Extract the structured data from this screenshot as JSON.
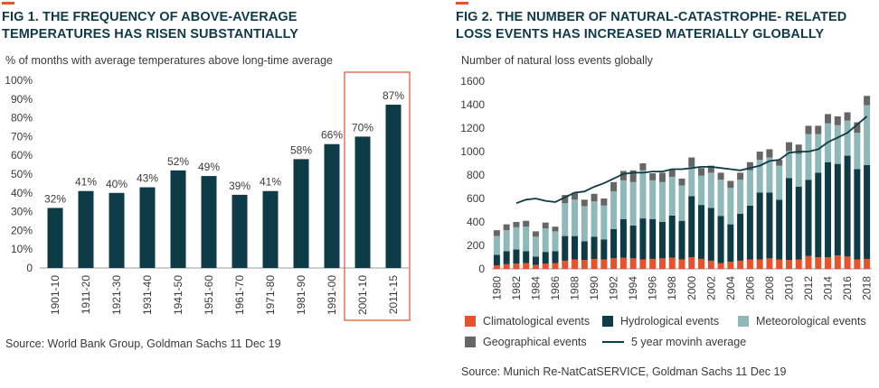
{
  "colors": {
    "teal_dark": "#0d3b47",
    "teal_light": "#8fb8b8",
    "orange": "#e8522a",
    "gray": "#666666",
    "axis": "#9a9a9a",
    "highlight_box": "#d9532c"
  },
  "chart_data": [
    {
      "type": "bar",
      "title": "FIG 1. THE FREQUENCY OF ABOVE-AVERAGE TEMPERATURES HAS RISEN SUBSTANTIALLY",
      "subtitle": "% of months with average temperatures above long-time average",
      "source": "Source: World Bank Group, Goldman Sachs 11 Dec 19",
      "categories": [
        "1901-10",
        "1911-20",
        "1921-30",
        "1931-40",
        "1941-50",
        "1951-60",
        "1961-70",
        "1971-80",
        "1981-90",
        "1991-00",
        "2001-10",
        "2011-15"
      ],
      "values": [
        32,
        41,
        40,
        43,
        52,
        49,
        39,
        41,
        58,
        66,
        70,
        87
      ],
      "data_labels": [
        "32%",
        "41%",
        "40%",
        "43%",
        "52%",
        "49%",
        "39%",
        "41%",
        "58%",
        "66%",
        "70%",
        "87%"
      ],
      "ylim": [
        0,
        100
      ],
      "yticks": [
        0,
        10,
        20,
        30,
        40,
        50,
        60,
        70,
        80,
        90,
        100
      ],
      "ytick_labels": [
        "0",
        "10%",
        "20%",
        "30%",
        "40%",
        "50%",
        "60%",
        "70%",
        "80%",
        "90%",
        "100%"
      ],
      "highlighted_categories": [
        "2001-10",
        "2011-15"
      ],
      "grid": false
    },
    {
      "type": "bar",
      "stacked": true,
      "title": "FIG 2. THE NUMBER OF NATURAL-CATASTROPHE- RELATED LOSS EVENTS HAS INCREASED MATERIALLY GLOBALLY",
      "subtitle": "Number of natural loss events globally",
      "source": "Source: Munich Re-NatCatSERVICE, Goldman Sachs 11 Dec 19",
      "x": [
        1980,
        1981,
        1982,
        1983,
        1984,
        1985,
        1986,
        1987,
        1988,
        1989,
        1990,
        1991,
        1992,
        1993,
        1994,
        1995,
        1996,
        1997,
        1998,
        1999,
        2000,
        2001,
        2002,
        2003,
        2004,
        2005,
        2006,
        2007,
        2008,
        2009,
        2010,
        2011,
        2012,
        2013,
        2014,
        2015,
        2016,
        2017,
        2018
      ],
      "xtick_labels": [
        "1980",
        "1982",
        "1984",
        "1986",
        "1988",
        "1990",
        "1992",
        "1994",
        "1996",
        "1998",
        "2000",
        "2002",
        "2004",
        "2006",
        "2008",
        "2010",
        "2012",
        "2014",
        "2016",
        "2018"
      ],
      "series": [
        {
          "name": "Climatological events",
          "color": "#e8522a",
          "values": [
            30,
            40,
            45,
            50,
            35,
            45,
            50,
            70,
            80,
            75,
            85,
            80,
            90,
            95,
            90,
            80,
            85,
            90,
            95,
            80,
            100,
            85,
            70,
            50,
            60,
            70,
            80,
            80,
            90,
            80,
            75,
            80,
            110,
            100,
            100,
            115,
            105,
            80,
            85
          ]
        },
        {
          "name": "Hydrological events",
          "color": "#0d3b47",
          "values": [
            90,
            110,
            120,
            100,
            70,
            100,
            100,
            210,
            200,
            160,
            190,
            170,
            250,
            330,
            280,
            350,
            340,
            310,
            360,
            330,
            520,
            460,
            450,
            400,
            320,
            400,
            460,
            570,
            560,
            510,
            700,
            620,
            650,
            720,
            810,
            780,
            860,
            770,
            800
          ]
        },
        {
          "name": "Meteorological events",
          "color": "#8fb8b8",
          "values": [
            160,
            180,
            190,
            210,
            170,
            200,
            170,
            280,
            310,
            300,
            300,
            290,
            320,
            330,
            370,
            410,
            330,
            340,
            330,
            300,
            250,
            250,
            300,
            310,
            310,
            290,
            300,
            280,
            300,
            290,
            230,
            280,
            390,
            330,
            330,
            330,
            300,
            310,
            510
          ]
        },
        {
          "name": "Geographical events",
          "color": "#666666",
          "values": [
            50,
            50,
            45,
            50,
            45,
            50,
            40,
            70,
            60,
            55,
            65,
            60,
            80,
            80,
            100,
            60,
            60,
            80,
            60,
            60,
            80,
            65,
            60,
            60,
            60,
            60,
            70,
            70,
            70,
            50,
            75,
            80,
            70,
            70,
            80,
            75,
            70,
            90,
            80
          ]
        }
      ],
      "line": {
        "name": "5 year movinh average",
        "color": "#0d3b47",
        "values": [
          null,
          null,
          560,
          590,
          600,
          580,
          570,
          610,
          650,
          660,
          700,
          730,
          770,
          810,
          820,
          820,
          830,
          830,
          850,
          850,
          860,
          870,
          870,
          860,
          850,
          840,
          860,
          880,
          920,
          930,
          990,
          1000,
          1000,
          1020,
          1080,
          1120,
          1160,
          1230,
          1300
        ]
      },
      "ylim": [
        0,
        1600
      ],
      "yticks": [
        0,
        200,
        400,
        600,
        800,
        1000,
        1200,
        1400,
        1600
      ],
      "legend_placement": "bottom",
      "grid": false
    }
  ]
}
